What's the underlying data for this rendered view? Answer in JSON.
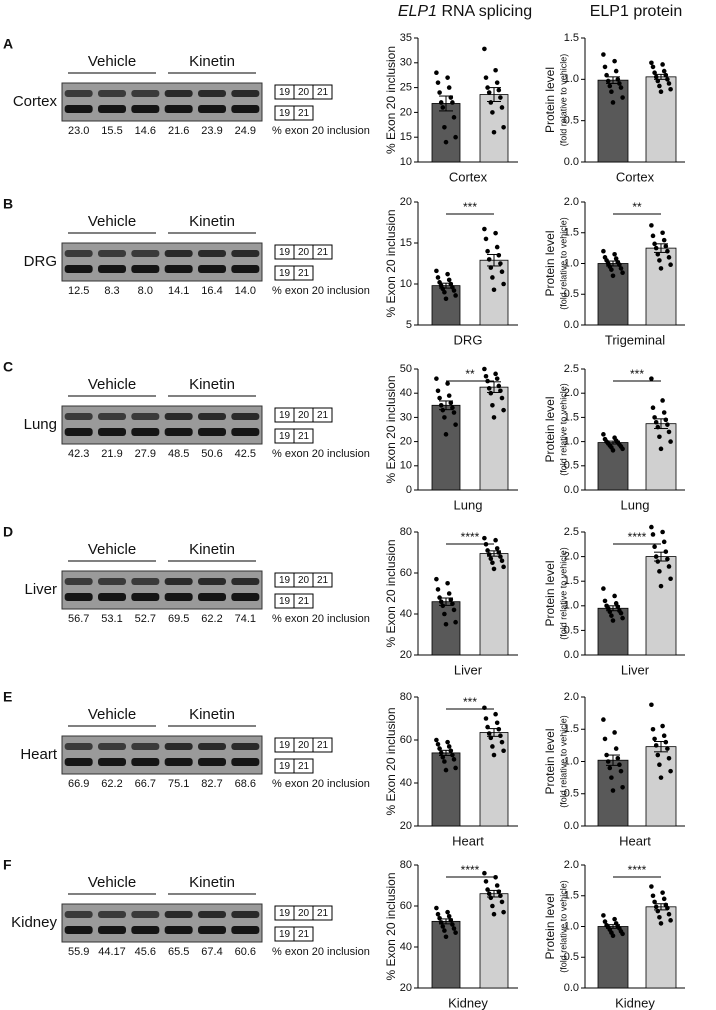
{
  "headers": {
    "splicing_gene": "ELP1",
    "splicing_rest": "RNA splicing",
    "protein": "ELP1 protein"
  },
  "panels": [
    {
      "letter": "A",
      "tissue": "Cortex",
      "groups": [
        "Vehicle",
        "Kinetin"
      ],
      "exon_long": [
        "19",
        "20",
        "21"
      ],
      "exon_short": [
        "19",
        "21"
      ],
      "percents": [
        "23.0",
        "15.5",
        "14.6",
        "21.6",
        "23.9",
        "24.9"
      ],
      "percent_label": "% exon 20 inclusion"
    },
    {
      "letter": "B",
      "tissue": "DRG",
      "groups": [
        "Vehicle",
        "Kinetin"
      ],
      "exon_long": [
        "19",
        "20",
        "21"
      ],
      "exon_short": [
        "19",
        "21"
      ],
      "percents": [
        "12.5",
        "8.3",
        "8.0",
        "14.1",
        "16.4",
        "14.0"
      ],
      "percent_label": "% exon 20 inclusion"
    },
    {
      "letter": "C",
      "tissue": "Lung",
      "groups": [
        "Vehicle",
        "Kinetin"
      ],
      "exon_long": [
        "19",
        "20",
        "21"
      ],
      "exon_short": [
        "19",
        "21"
      ],
      "percents": [
        "42.3",
        "21.9",
        "27.9",
        "48.5",
        "50.6",
        "42.5"
      ],
      "percent_label": "% exon 20 inclusion"
    },
    {
      "letter": "D",
      "tissue": "Liver",
      "groups": [
        "Vehicle",
        "Kinetin"
      ],
      "exon_long": [
        "19",
        "20",
        "21"
      ],
      "exon_short": [
        "19",
        "21"
      ],
      "percents": [
        "56.7",
        "53.1",
        "52.7",
        "69.5",
        "62.2",
        "74.1"
      ],
      "percent_label": "% exon 20 inclusion"
    },
    {
      "letter": "E",
      "tissue": "Heart",
      "groups": [
        "Vehicle",
        "Kinetin"
      ],
      "exon_long": [
        "19",
        "20",
        "21"
      ],
      "exon_short": [
        "19",
        "21"
      ],
      "percents": [
        "66.9",
        "62.2",
        "66.7",
        "75.1",
        "82.7",
        "68.6"
      ],
      "percent_label": "% exon 20 inclusion"
    },
    {
      "letter": "F",
      "tissue": "Kidney",
      "groups": [
        "Vehicle",
        "Kinetin"
      ],
      "exon_long": [
        "19",
        "20",
        "21"
      ],
      "exon_short": [
        "19",
        "21"
      ],
      "percents": [
        "55.9",
        "44.17",
        "45.6",
        "65.5",
        "67.4",
        "60.6"
      ],
      "percent_label": "% exon 20 inclusion"
    }
  ],
  "chart_data": [
    {
      "type": "bar",
      "ylabel": "% Exon 20 inclusion",
      "xlabel": "Cortex",
      "categories": [
        null,
        null
      ],
      "colors": [
        "#595959",
        "#d0d0d0"
      ],
      "values": [
        21.8,
        23.6
      ],
      "errors": [
        1.5,
        1.4
      ],
      "points": [
        [
          28,
          27,
          26,
          25,
          24,
          23,
          22,
          22,
          21,
          19,
          17,
          15,
          14
        ],
        [
          32.8,
          28.5,
          27,
          26,
          25,
          24.5,
          24,
          23,
          22,
          21,
          20,
          17,
          16
        ]
      ],
      "ylim": [
        10,
        35
      ],
      "yticks": [
        10,
        15,
        20,
        25,
        30,
        35
      ]
    },
    {
      "type": "bar",
      "ylabel": "Protein level",
      "ylabel_sub": "(fold relative to vehicle)",
      "xlabel": "Cortex",
      "categories": [
        null,
        null
      ],
      "colors": [
        "#595959",
        "#d0d0d0"
      ],
      "values": [
        0.99,
        1.03
      ],
      "errors": [
        0.04,
        0.03
      ],
      "points": [
        [
          1.3,
          1.22,
          1.15,
          1.1,
          1.05,
          1.0,
          0.98,
          0.95,
          0.92,
          0.9,
          0.85,
          0.78,
          0.72
        ],
        [
          1.2,
          1.18,
          1.15,
          1.1,
          1.08,
          1.05,
          1.03,
          1.0,
          0.98,
          0.95,
          0.92,
          0.88,
          0.85
        ]
      ],
      "ylim": [
        0,
        1.5
      ],
      "yticks": [
        {
          "value": 0,
          "label": "0.0"
        },
        0.5,
        {
          "value": 1,
          "label": "1.0"
        },
        1.5
      ]
    },
    {
      "type": "bar",
      "ylabel": "% Exon 20 inclusion",
      "xlabel": "DRG",
      "categories": [
        null,
        null
      ],
      "colors": [
        "#595959",
        "#d0d0d0"
      ],
      "values": [
        9.8,
        12.9
      ],
      "errors": [
        0.3,
        0.7
      ],
      "points": [
        [
          11.6,
          11.2,
          10.8,
          10.5,
          10.2,
          10,
          9.8,
          9.6,
          9.4,
          9.2,
          9,
          8.6,
          8.2
        ],
        [
          16.7,
          16.2,
          15.5,
          14.5,
          14,
          13.5,
          13,
          12.5,
          12,
          11.5,
          10.8,
          10,
          9.3
        ]
      ],
      "ylim": [
        5,
        20
      ],
      "yticks": [
        5,
        10,
        15,
        20
      ],
      "significance": "***"
    },
    {
      "type": "bar",
      "ylabel": "Protein level",
      "ylabel_sub": "(fold relative to vehicle)",
      "xlabel": "Trigeminal",
      "categories": [
        null,
        null
      ],
      "colors": [
        "#595959",
        "#d0d0d0"
      ],
      "values": [
        1.0,
        1.25
      ],
      "errors": [
        0.04,
        0.07
      ],
      "points": [
        [
          1.2,
          1.15,
          1.1,
          1.08,
          1.05,
          1.02,
          1.0,
          0.98,
          0.95,
          0.92,
          0.9,
          0.85,
          0.8
        ],
        [
          1.62,
          1.5,
          1.45,
          1.38,
          1.32,
          1.28,
          1.25,
          1.2,
          1.15,
          1.1,
          1.05,
          0.98,
          0.92
        ]
      ],
      "ylim": [
        0,
        2
      ],
      "yticks": [
        {
          "value": 0,
          "label": "0.0"
        },
        0.5,
        {
          "value": 1,
          "label": "1.0"
        },
        1.5,
        {
          "value": 2,
          "label": "2.0"
        }
      ],
      "significance": "**"
    },
    {
      "type": "bar",
      "ylabel": "% Exon 20 inclusion",
      "xlabel": "Lung",
      "categories": [
        null,
        null
      ],
      "colors": [
        "#595959",
        "#d0d0d0"
      ],
      "values": [
        35,
        42.5
      ],
      "errors": [
        1.8,
        2.2
      ],
      "points": [
        [
          46,
          44,
          41,
          39,
          38,
          36,
          35,
          34,
          33,
          32,
          30,
          27,
          23
        ],
        [
          50,
          48,
          47,
          46,
          45,
          43,
          42,
          41,
          40,
          38,
          35,
          33,
          30
        ]
      ],
      "ylim": [
        0,
        50
      ],
      "yticks": [
        0,
        10,
        20,
        30,
        40,
        50
      ],
      "significance": "**"
    },
    {
      "type": "bar",
      "ylabel": "Protein level",
      "ylabel_sub": "(fold relative to vehicle)",
      "xlabel": "Lung",
      "categories": [
        null,
        null
      ],
      "colors": [
        "#595959",
        "#d0d0d0"
      ],
      "values": [
        0.98,
        1.37
      ],
      "errors": [
        0.03,
        0.1
      ],
      "points": [
        [
          1.15,
          1.08,
          1.05,
          1.02,
          1.0,
          0.98,
          0.96,
          0.94,
          0.92,
          0.9,
          0.88,
          0.85,
          0.82
        ],
        [
          2.3,
          1.85,
          1.7,
          1.6,
          1.5,
          1.45,
          1.4,
          1.35,
          1.3,
          1.2,
          1.1,
          1.0,
          0.85
        ]
      ],
      "ylim": [
        0,
        2.5
      ],
      "yticks": [
        {
          "value": 0,
          "label": "0.0"
        },
        0.5,
        {
          "value": 1,
          "label": "1.0"
        },
        1.5,
        {
          "value": 2,
          "label": "2.0"
        },
        2.5
      ],
      "significance": "***"
    },
    {
      "type": "bar",
      "ylabel": "% Exon 20 inclusion",
      "xlabel": "Liver",
      "categories": [
        null,
        null
      ],
      "colors": [
        "#595959",
        "#d0d0d0"
      ],
      "values": [
        46,
        69.5
      ],
      "errors": [
        1.8,
        1.3
      ],
      "points": [
        [
          57,
          55,
          52,
          50,
          48,
          47,
          46,
          45,
          44,
          42,
          40,
          36,
          35
        ],
        [
          77,
          76,
          74,
          72,
          71,
          70,
          69,
          68,
          67,
          66,
          65,
          63,
          62
        ]
      ],
      "ylim": [
        20,
        80
      ],
      "yticks": [
        20,
        40,
        60,
        80
      ],
      "significance": "****"
    },
    {
      "type": "bar",
      "ylabel": "Protein level",
      "ylabel_sub": "(fold relative to vehicle)",
      "xlabel": "Liver",
      "categories": [
        null,
        null
      ],
      "colors": [
        "#595959",
        "#d0d0d0"
      ],
      "values": [
        0.95,
        2.0
      ],
      "errors": [
        0.05,
        0.09
      ],
      "points": [
        [
          1.35,
          1.2,
          1.1,
          1.05,
          1.0,
          0.98,
          0.95,
          0.9,
          0.88,
          0.85,
          0.8,
          0.75,
          0.7
        ],
        [
          2.6,
          2.5,
          2.45,
          2.3,
          2.2,
          2.1,
          2.0,
          1.95,
          1.9,
          1.8,
          1.7,
          1.55,
          1.4
        ]
      ],
      "ylim": [
        0,
        2.5
      ],
      "yticks": [
        {
          "value": 0,
          "label": "0.0"
        },
        0.5,
        {
          "value": 1,
          "label": "1.0"
        },
        1.5,
        {
          "value": 2,
          "label": "2.0"
        },
        2.5
      ],
      "significance": "****"
    },
    {
      "type": "bar",
      "ylabel": "% Exon 20 inclusion",
      "xlabel": "Heart",
      "categories": [
        null,
        null
      ],
      "colors": [
        "#595959",
        "#d0d0d0"
      ],
      "values": [
        54,
        63.5
      ],
      "errors": [
        1.2,
        1.8
      ],
      "points": [
        [
          60,
          59,
          58,
          57,
          56,
          55,
          54,
          53,
          52,
          51,
          50,
          47,
          46
        ],
        [
          75,
          72,
          70,
          68,
          66,
          65,
          63,
          62,
          61,
          59,
          57,
          55,
          53
        ]
      ],
      "ylim": [
        20,
        80
      ],
      "yticks": [
        20,
        40,
        60,
        80
      ],
      "significance": "***"
    },
    {
      "type": "bar",
      "ylabel": "Protein level",
      "ylabel_sub": "(fold relative to vehicle)",
      "xlabel": "Heart",
      "categories": [
        null,
        null
      ],
      "colors": [
        "#595959",
        "#d0d0d0"
      ],
      "values": [
        1.02,
        1.23
      ],
      "errors": [
        0.08,
        0.08
      ],
      "points": [
        [
          1.65,
          1.45,
          1.35,
          1.2,
          1.1,
          1.05,
          1.0,
          0.95,
          0.9,
          0.85,
          0.75,
          0.6,
          0.55
        ],
        [
          1.88,
          1.55,
          1.5,
          1.4,
          1.35,
          1.3,
          1.25,
          1.2,
          1.1,
          1.05,
          0.95,
          0.85,
          0.75
        ]
      ],
      "ylim": [
        0,
        2
      ],
      "yticks": [
        {
          "value": 0,
          "label": "0.0"
        },
        0.5,
        {
          "value": 1,
          "label": "1.0"
        },
        1.5,
        {
          "value": 2,
          "label": "2.0"
        }
      ]
    },
    {
      "type": "bar",
      "ylabel": "% Exon 20 inclusion",
      "xlabel": "Kidney",
      "categories": [
        null,
        null
      ],
      "colors": [
        "#595959",
        "#d0d0d0"
      ],
      "values": [
        52.5,
        66
      ],
      "errors": [
        1.2,
        1.6
      ],
      "points": [
        [
          59,
          57,
          56,
          55,
          54,
          53,
          52,
          51,
          50,
          49,
          48,
          47,
          45
        ],
        [
          76,
          74,
          72,
          70,
          68,
          67,
          66,
          65,
          64,
          62,
          60,
          57,
          56
        ]
      ],
      "ylim": [
        20,
        80
      ],
      "yticks": [
        20,
        40,
        60,
        80
      ],
      "significance": "****"
    },
    {
      "type": "bar",
      "ylabel": "Protein level",
      "ylabel_sub": "(fold relative to vehicle)",
      "xlabel": "Kidney",
      "categories": [
        null,
        null
      ],
      "colors": [
        "#595959",
        "#d0d0d0"
      ],
      "values": [
        1.0,
        1.32
      ],
      "errors": [
        0.03,
        0.05
      ],
      "points": [
        [
          1.18,
          1.12,
          1.08,
          1.05,
          1.02,
          1.0,
          0.99,
          0.97,
          0.95,
          0.92,
          0.9,
          0.88,
          0.85
        ],
        [
          1.65,
          1.55,
          1.5,
          1.45,
          1.4,
          1.35,
          1.32,
          1.3,
          1.25,
          1.2,
          1.15,
          1.1,
          1.05
        ]
      ],
      "ylim": [
        0,
        2
      ],
      "yticks": [
        {
          "value": 0,
          "label": "0.0"
        },
        0.5,
        {
          "value": 1,
          "label": "1.0"
        },
        1.5,
        {
          "value": 2,
          "label": "2.0"
        }
      ],
      "significance": "****"
    }
  ]
}
